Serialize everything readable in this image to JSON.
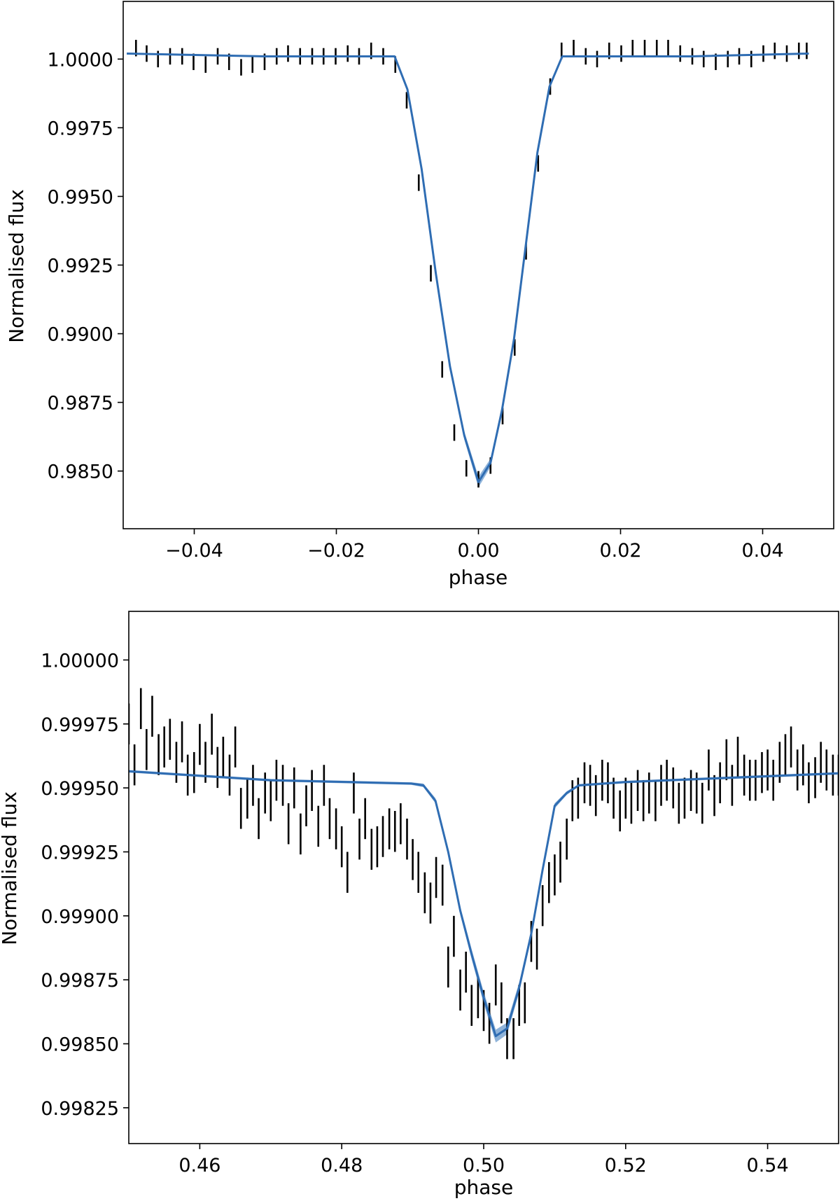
{
  "chart_data": [
    {
      "type": "line",
      "xlabel": "phase",
      "ylabel": "Normalised flux",
      "xlim": [
        -0.05,
        0.05
      ],
      "ylim": [
        0.9829,
        1.0021
      ],
      "x_ticks": [
        -0.04,
        -0.02,
        0.0,
        0.02,
        0.04
      ],
      "x_tick_labels": [
        "−0.04",
        "−0.02",
        "0.00",
        "0.02",
        "0.04"
      ],
      "y_ticks": [
        0.985,
        0.9875,
        0.99,
        0.9925,
        0.995,
        0.9975,
        1.0
      ],
      "y_tick_labels": [
        "0.9850",
        "0.9875",
        "0.9900",
        "0.9925",
        "0.9950",
        "0.9975",
        "1.0000"
      ],
      "colors": {
        "model": "#2f6db3",
        "band": "#6a99cc",
        "errorbar": "#000000"
      },
      "model": {
        "x": [
          -0.0495,
          -0.03,
          -0.02,
          -0.0118,
          -0.01,
          -0.008,
          -0.006,
          -0.004,
          -0.002,
          0.0,
          0.0017,
          0.0033,
          0.005,
          0.0067,
          0.0083,
          0.01,
          0.0118,
          0.02,
          0.03,
          0.0465
        ],
        "y": [
          1.0002,
          1.0001,
          1.0001,
          1.0001,
          0.9989,
          0.996,
          0.9922,
          0.9888,
          0.9863,
          0.9846,
          0.9853,
          0.9872,
          0.9898,
          0.9933,
          0.9966,
          0.999,
          1.0001,
          1.0001,
          1.0001,
          1.0002
        ],
        "band_halfwidth": [
          0,
          0,
          0,
          0,
          0,
          0,
          0,
          0,
          0.00015,
          0.0002,
          0.00015,
          0,
          0,
          0,
          0,
          0,
          0,
          0,
          0,
          0
        ]
      },
      "errorbars": {
        "x": [
          -0.0482,
          -0.0467,
          -0.0451,
          -0.0434,
          -0.0417,
          -0.0401,
          -0.0384,
          -0.0367,
          -0.0351,
          -0.0334,
          -0.0318,
          -0.0301,
          -0.0284,
          -0.0268,
          -0.0251,
          -0.0234,
          -0.0218,
          -0.0201,
          -0.0184,
          -0.0168,
          -0.0151,
          -0.0134,
          -0.0117,
          -0.0101,
          -0.0084,
          -0.0067,
          -0.0051,
          -0.0034,
          -0.0017,
          0.0,
          0.0017,
          0.0034,
          0.0051,
          0.0067,
          0.0084,
          0.0101,
          0.0117,
          0.0134,
          0.0151,
          0.0167,
          0.0184,
          0.0201,
          0.0217,
          0.0234,
          0.0251,
          0.0267,
          0.0284,
          0.0301,
          0.0317,
          0.0334,
          0.0351,
          0.0367,
          0.0384,
          0.0401,
          0.0417,
          0.0434,
          0.0451,
          0.0462
        ],
        "y": [
          1.0004,
          1.0002,
          1.0,
          1.0001,
          1.0001,
          0.9999,
          0.9998,
          1.0001,
          0.9999,
          0.9997,
          0.9998,
          0.9999,
          1.0001,
          1.0002,
          1.0001,
          1.0001,
          1.0001,
          1.0001,
          1.0002,
          1.0001,
          1.0003,
          1.0001,
          0.9998,
          0.9985,
          0.9955,
          0.9922,
          0.9887,
          0.9864,
          0.9851,
          0.9847,
          0.9852,
          0.987,
          0.9895,
          0.993,
          0.9962,
          0.999,
          1.0003,
          1.0004,
          1.0001,
          1.0,
          1.0003,
          1.0002,
          1.0004,
          1.0004,
          1.0004,
          1.0004,
          1.0002,
          1.0001,
          1.0,
          0.9999,
          1.0,
          1.0001,
          1.0,
          1.0002,
          1.0003,
          1.0002,
          1.0003,
          1.0003
        ],
        "err": [
          0.0003,
          0.0003,
          0.0003,
          0.0003,
          0.0003,
          0.0003,
          0.0003,
          0.0003,
          0.0003,
          0.0003,
          0.0003,
          0.0003,
          0.0003,
          0.0003,
          0.0003,
          0.0003,
          0.0003,
          0.0003,
          0.0003,
          0.0003,
          0.0003,
          0.0003,
          0.0003,
          0.0003,
          0.0003,
          0.0003,
          0.0003,
          0.0003,
          0.0003,
          0.0003,
          0.0003,
          0.0003,
          0.0003,
          0.0003,
          0.0003,
          0.0003,
          0.0003,
          0.0003,
          0.0003,
          0.0003,
          0.0003,
          0.0003,
          0.0003,
          0.0003,
          0.0003,
          0.0003,
          0.0003,
          0.0003,
          0.0003,
          0.0003,
          0.0003,
          0.0003,
          0.0003,
          0.0003,
          0.0003,
          0.0003,
          0.0003,
          0.0003
        ]
      }
    },
    {
      "type": "line",
      "xlabel": "phase",
      "ylabel": "Normalised flux",
      "xlim": [
        0.45,
        0.55
      ],
      "ylim": [
        0.99811,
        1.00019
      ],
      "x_ticks": [
        0.46,
        0.48,
        0.5,
        0.52,
        0.54
      ],
      "x_tick_labels": [
        "0.46",
        "0.48",
        "0.50",
        "0.52",
        "0.54"
      ],
      "y_ticks": [
        0.99825,
        0.9985,
        0.99875,
        0.999,
        0.99925,
        0.9995,
        0.99975,
        1.0
      ],
      "y_tick_labels": [
        "0.99825",
        "0.99850",
        "0.99875",
        "0.99900",
        "0.99925",
        "0.99950",
        "0.99975",
        "1.00000"
      ],
      "colors": {
        "model": "#2f6db3",
        "band": "#6a99cc",
        "errorbar": "#000000"
      },
      "model": {
        "x": [
          0.45,
          0.47,
          0.4898,
          0.4915,
          0.4932,
          0.495,
          0.4967,
          0.4983,
          0.5,
          0.5017,
          0.5033,
          0.505,
          0.5067,
          0.5083,
          0.51,
          0.5117,
          0.5134,
          0.52,
          0.535,
          0.55
        ],
        "y": [
          0.999565,
          0.99953,
          0.999517,
          0.99951,
          0.99945,
          0.99925,
          0.99902,
          0.99885,
          0.99868,
          0.99853,
          0.99856,
          0.99872,
          0.99893,
          0.99918,
          0.99943,
          0.99948,
          0.99951,
          0.999523,
          0.99954,
          0.999557
        ],
        "band_halfwidth": [
          5e-06,
          5e-06,
          5e-06,
          7e-06,
          1e-05,
          1.3e-05,
          1.6e-05,
          2e-05,
          2.3e-05,
          2.5e-05,
          2.3e-05,
          2e-05,
          1.6e-05,
          1.3e-05,
          1e-05,
          7e-06,
          5e-06,
          5e-06,
          5e-06,
          5e-06
        ]
      },
      "errorbars": {
        "x": [
          0.45,
          0.4508,
          0.4517,
          0.4525,
          0.4533,
          0.4542,
          0.455,
          0.4558,
          0.4567,
          0.4575,
          0.4583,
          0.4592,
          0.46,
          0.4608,
          0.4617,
          0.4625,
          0.4633,
          0.4642,
          0.465,
          0.4658,
          0.4667,
          0.4675,
          0.4683,
          0.4692,
          0.47,
          0.4708,
          0.4717,
          0.4725,
          0.4733,
          0.4742,
          0.475,
          0.4758,
          0.4767,
          0.4775,
          0.4783,
          0.4792,
          0.48,
          0.4808,
          0.4817,
          0.4825,
          0.4833,
          0.4842,
          0.485,
          0.4858,
          0.4867,
          0.4875,
          0.4883,
          0.4892,
          0.49,
          0.4908,
          0.4917,
          0.4925,
          0.4933,
          0.4942,
          0.495,
          0.4958,
          0.4967,
          0.4975,
          0.4983,
          0.4992,
          0.5,
          0.5008,
          0.5017,
          0.5025,
          0.5033,
          0.5042,
          0.505,
          0.5058,
          0.5067,
          0.5075,
          0.5083,
          0.5092,
          0.51,
          0.5108,
          0.5117,
          0.5125,
          0.5133,
          0.5142,
          0.515,
          0.5158,
          0.5167,
          0.5175,
          0.5183,
          0.5192,
          0.52,
          0.5208,
          0.5217,
          0.5225,
          0.5233,
          0.5242,
          0.525,
          0.5258,
          0.5267,
          0.5275,
          0.5283,
          0.5292,
          0.53,
          0.5308,
          0.5317,
          0.5325,
          0.5333,
          0.5342,
          0.535,
          0.5358,
          0.5367,
          0.5375,
          0.5383,
          0.5392,
          0.54,
          0.5408,
          0.5417,
          0.5425,
          0.5433,
          0.5442,
          0.545,
          0.5458,
          0.5467,
          0.5475,
          0.5483,
          0.5492,
          0.55
        ],
        "y": [
          0.99975,
          0.99959,
          0.99981,
          0.99965,
          0.99978,
          0.99963,
          0.99966,
          0.99969,
          0.9996,
          0.99968,
          0.99955,
          0.99956,
          0.99967,
          0.9996,
          0.99971,
          0.99958,
          0.99962,
          0.99955,
          0.99966,
          0.99942,
          0.99946,
          0.99951,
          0.99938,
          0.99948,
          0.99945,
          0.99953,
          0.99951,
          0.99936,
          0.9995,
          0.99932,
          0.99943,
          0.99949,
          0.99935,
          0.99951,
          0.99938,
          0.99934,
          0.99927,
          0.99917,
          0.99948,
          0.9993,
          0.99938,
          0.99926,
          0.99927,
          0.99931,
          0.99934,
          0.99933,
          0.99936,
          0.9993,
          0.99922,
          0.99917,
          0.99909,
          0.99905,
          0.99915,
          0.99912,
          0.9988,
          0.99892,
          0.99871,
          0.99878,
          0.99865,
          0.99868,
          0.99863,
          0.99858,
          0.99873,
          0.99866,
          0.99852,
          0.99852,
          0.99865,
          0.99866,
          0.9989,
          0.99887,
          0.99904,
          0.99913,
          0.99916,
          0.99921,
          0.9993,
          0.99945,
          0.99946,
          0.99952,
          0.99951,
          0.99947,
          0.99953,
          0.99952,
          0.99946,
          0.99941,
          0.99946,
          0.99944,
          0.99949,
          0.99945,
          0.99948,
          0.99945,
          0.99951,
          0.99953,
          0.9995,
          0.99944,
          0.99946,
          0.99949,
          0.99948,
          0.99944,
          0.99957,
          0.99947,
          0.99952,
          0.99961,
          0.99951,
          0.99962,
          0.99955,
          0.99953,
          0.99953,
          0.99956,
          0.99957,
          0.99953,
          0.9996,
          0.99963,
          0.99966,
          0.99957,
          0.99959,
          0.99952,
          0.99954,
          0.9996,
          0.99957,
          0.99955,
          0.99955
        ],
        "err": [
          8e-05,
          8e-05,
          8e-05,
          8e-05,
          8e-05,
          8e-05,
          8e-05,
          8e-05,
          8e-05,
          8e-05,
          8e-05,
          8e-05,
          8e-05,
          8e-05,
          8e-05,
          8e-05,
          8e-05,
          8e-05,
          8e-05,
          8e-05,
          8e-05,
          8e-05,
          8e-05,
          8e-05,
          8e-05,
          8e-05,
          8e-05,
          8e-05,
          8e-05,
          8e-05,
          8e-05,
          8e-05,
          8e-05,
          8e-05,
          8e-05,
          8e-05,
          8e-05,
          8e-05,
          8e-05,
          8e-05,
          8e-05,
          8e-05,
          8e-05,
          8e-05,
          8e-05,
          8e-05,
          8e-05,
          8e-05,
          8e-05,
          8e-05,
          8e-05,
          8e-05,
          8e-05,
          8e-05,
          8e-05,
          8e-05,
          8e-05,
          8e-05,
          8e-05,
          8e-05,
          8e-05,
          8e-05,
          8e-05,
          8e-05,
          8e-05,
          8e-05,
          8e-05,
          8e-05,
          8e-05,
          8e-05,
          8e-05,
          8e-05,
          8e-05,
          8e-05,
          8e-05,
          8e-05,
          8e-05,
          8e-05,
          8e-05,
          8e-05,
          8e-05,
          8e-05,
          8e-05,
          8e-05,
          8e-05,
          8e-05,
          8e-05,
          8e-05,
          8e-05,
          8e-05,
          8e-05,
          8e-05,
          8e-05,
          8e-05,
          8e-05,
          8e-05,
          8e-05,
          8e-05,
          8e-05,
          8e-05,
          8e-05,
          8e-05,
          8e-05,
          8e-05,
          8e-05,
          8e-05,
          8e-05,
          8e-05,
          8e-05,
          8e-05,
          8e-05,
          8e-05,
          8e-05,
          8e-05,
          8e-05,
          8e-05,
          8e-05,
          8e-05,
          8e-05,
          8e-05,
          8e-05
        ]
      }
    }
  ]
}
